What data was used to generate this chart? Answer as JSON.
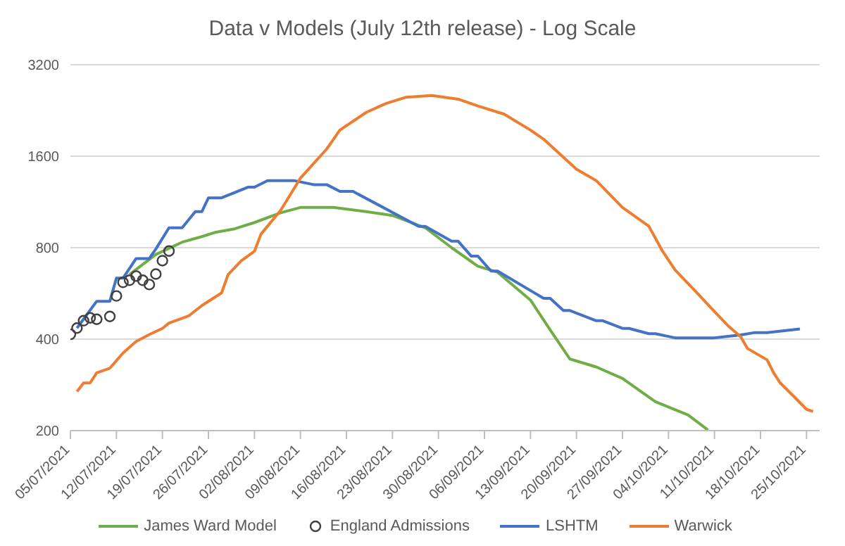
{
  "chart_data": {
    "type": "line",
    "title": "Data v Models (July 12th release) - Log Scale",
    "log": true,
    "grid": "y",
    "legend": "bottom",
    "xlim": [
      "2021-07-05",
      "2021-10-27"
    ],
    "xticks": [
      {
        "value": "2021-07-05",
        "label": "05/07/2021"
      },
      {
        "value": "2021-07-12",
        "label": "12/07/2021"
      },
      {
        "value": "2021-07-19",
        "label": "19/07/2021"
      },
      {
        "value": "2021-07-26",
        "label": "26/07/2021"
      },
      {
        "value": "2021-08-02",
        "label": "02/08/2021"
      },
      {
        "value": "2021-08-09",
        "label": "09/08/2021"
      },
      {
        "value": "2021-08-16",
        "label": "16/08/2021"
      },
      {
        "value": "2021-08-23",
        "label": "23/08/2021"
      },
      {
        "value": "2021-08-30",
        "label": "30/08/2021"
      },
      {
        "value": "2021-09-06",
        "label": "06/09/2021"
      },
      {
        "value": "2021-09-13",
        "label": "13/09/2021"
      },
      {
        "value": "2021-09-20",
        "label": "20/09/2021"
      },
      {
        "value": "2021-09-27",
        "label": "27/09/2021"
      },
      {
        "value": "2021-10-04",
        "label": "04/10/2021"
      },
      {
        "value": "2021-10-11",
        "label": "11/10/2021"
      },
      {
        "value": "2021-10-18",
        "label": "18/10/2021"
      },
      {
        "value": "2021-10-25",
        "label": "25/10/2021"
      }
    ],
    "ylim": [
      200,
      3200
    ],
    "yticks": [
      200,
      400,
      800,
      1600,
      3200
    ],
    "series": [
      {
        "name": "James Ward Model",
        "marker": "none",
        "color": "#70ad47",
        "x": [
          "2021-07-14",
          "2021-07-18",
          "2021-07-22",
          "2021-07-25",
          "2021-07-27",
          "2021-07-30",
          "2021-08-02",
          "2021-08-06",
          "2021-08-09",
          "2021-08-14",
          "2021-08-19",
          "2021-08-23",
          "2021-08-28",
          "2021-09-01",
          "2021-09-05",
          "2021-09-08",
          "2021-09-13",
          "2021-09-16",
          "2021-09-19",
          "2021-09-23",
          "2021-09-27",
          "2021-10-02",
          "2021-10-07",
          "2021-10-10"
        ],
        "values": [
          653,
          760,
          834,
          870,
          898,
          923,
          968,
          1042,
          1085,
          1085,
          1051,
          1021,
          930,
          800,
          695,
          664,
          538,
          429,
          344,
          324,
          297,
          249,
          225,
          201
        ]
      },
      {
        "name": "England Admissions",
        "type": "scatter",
        "marker": "circle",
        "color": "#404040",
        "x": [
          "2021-07-05",
          "2021-07-06",
          "2021-07-07",
          "2021-07-08",
          "2021-07-09",
          "2021-07-11",
          "2021-07-12",
          "2021-07-13",
          "2021-07-14",
          "2021-07-15",
          "2021-07-16",
          "2021-07-17",
          "2021-07-18",
          "2021-07-19",
          "2021-07-20"
        ],
        "values": [
          415,
          435,
          460,
          470,
          465,
          475,
          555,
          615,
          625,
          645,
          625,
          605,
          655,
          725,
          780
        ]
      },
      {
        "name": "LSHTM",
        "marker": "none",
        "color": "#4472c4",
        "x": [
          "2021-07-06",
          "2021-07-09",
          "2021-07-11",
          "2021-07-12",
          "2021-07-13",
          "2021-07-15",
          "2021-07-17",
          "2021-07-18",
          "2021-07-20",
          "2021-07-22",
          "2021-07-24",
          "2021-07-25",
          "2021-07-26",
          "2021-07-28",
          "2021-08-01",
          "2021-08-02",
          "2021-08-04",
          "2021-08-08",
          "2021-08-11",
          "2021-08-13",
          "2021-08-15",
          "2021-08-17",
          "2021-08-27",
          "2021-08-28",
          "2021-09-01",
          "2021-09-02",
          "2021-09-04",
          "2021-09-05",
          "2021-09-07",
          "2021-09-08",
          "2021-09-15",
          "2021-09-16",
          "2021-09-18",
          "2021-09-19",
          "2021-09-23",
          "2021-09-24",
          "2021-09-27",
          "2021-09-28",
          "2021-10-01",
          "2021-10-02",
          "2021-10-05",
          "2021-10-11",
          "2021-10-15",
          "2021-10-17",
          "2021-10-19",
          "2021-10-24"
        ],
        "values": [
          435,
          533,
          533,
          635,
          635,
          737,
          737,
          792,
          930,
          930,
          1051,
          1051,
          1167,
          1167,
          1265,
          1265,
          1330,
          1330,
          1290,
          1290,
          1225,
          1225,
          940,
          940,
          840,
          840,
          750,
          750,
          670,
          670,
          545,
          545,
          497,
          497,
          460,
          460,
          434,
          434,
          417,
          417,
          404,
          404,
          413,
          420,
          420,
          432
        ]
      },
      {
        "name": "Warwick",
        "marker": "none",
        "color": "#ed7d31",
        "x": [
          "2021-07-06",
          "2021-07-07",
          "2021-07-08",
          "2021-07-09",
          "2021-07-11",
          "2021-07-13",
          "2021-07-15",
          "2021-07-17",
          "2021-07-19",
          "2021-07-20",
          "2021-07-23",
          "2021-07-25",
          "2021-07-28",
          "2021-07-29",
          "2021-07-31",
          "2021-08-02",
          "2021-08-03",
          "2021-08-06",
          "2021-08-09",
          "2021-08-13",
          "2021-08-15",
          "2021-08-19",
          "2021-08-22",
          "2021-08-25",
          "2021-08-29",
          "2021-09-02",
          "2021-09-05",
          "2021-09-09",
          "2021-09-13",
          "2021-09-15",
          "2021-09-20",
          "2021-09-23",
          "2021-09-27",
          "2021-10-01",
          "2021-10-03",
          "2021-10-05",
          "2021-10-08",
          "2021-10-11",
          "2021-10-13",
          "2021-10-15",
          "2021-10-16",
          "2021-10-19",
          "2021-10-20",
          "2021-10-21",
          "2021-10-23",
          "2021-10-25",
          "2021-10-26"
        ],
        "values": [
          269,
          287,
          287,
          310,
          321,
          360,
          393,
          414,
          434,
          452,
          477,
          516,
          568,
          653,
          724,
          778,
          887,
          1063,
          1355,
          1690,
          1950,
          2230,
          2385,
          2500,
          2535,
          2465,
          2340,
          2200,
          1950,
          1820,
          1450,
          1330,
          1085,
          942,
          785,
          676,
          578,
          493,
          444,
          407,
          373,
          342,
          310,
          287,
          260,
          235,
          231
        ]
      }
    ]
  }
}
